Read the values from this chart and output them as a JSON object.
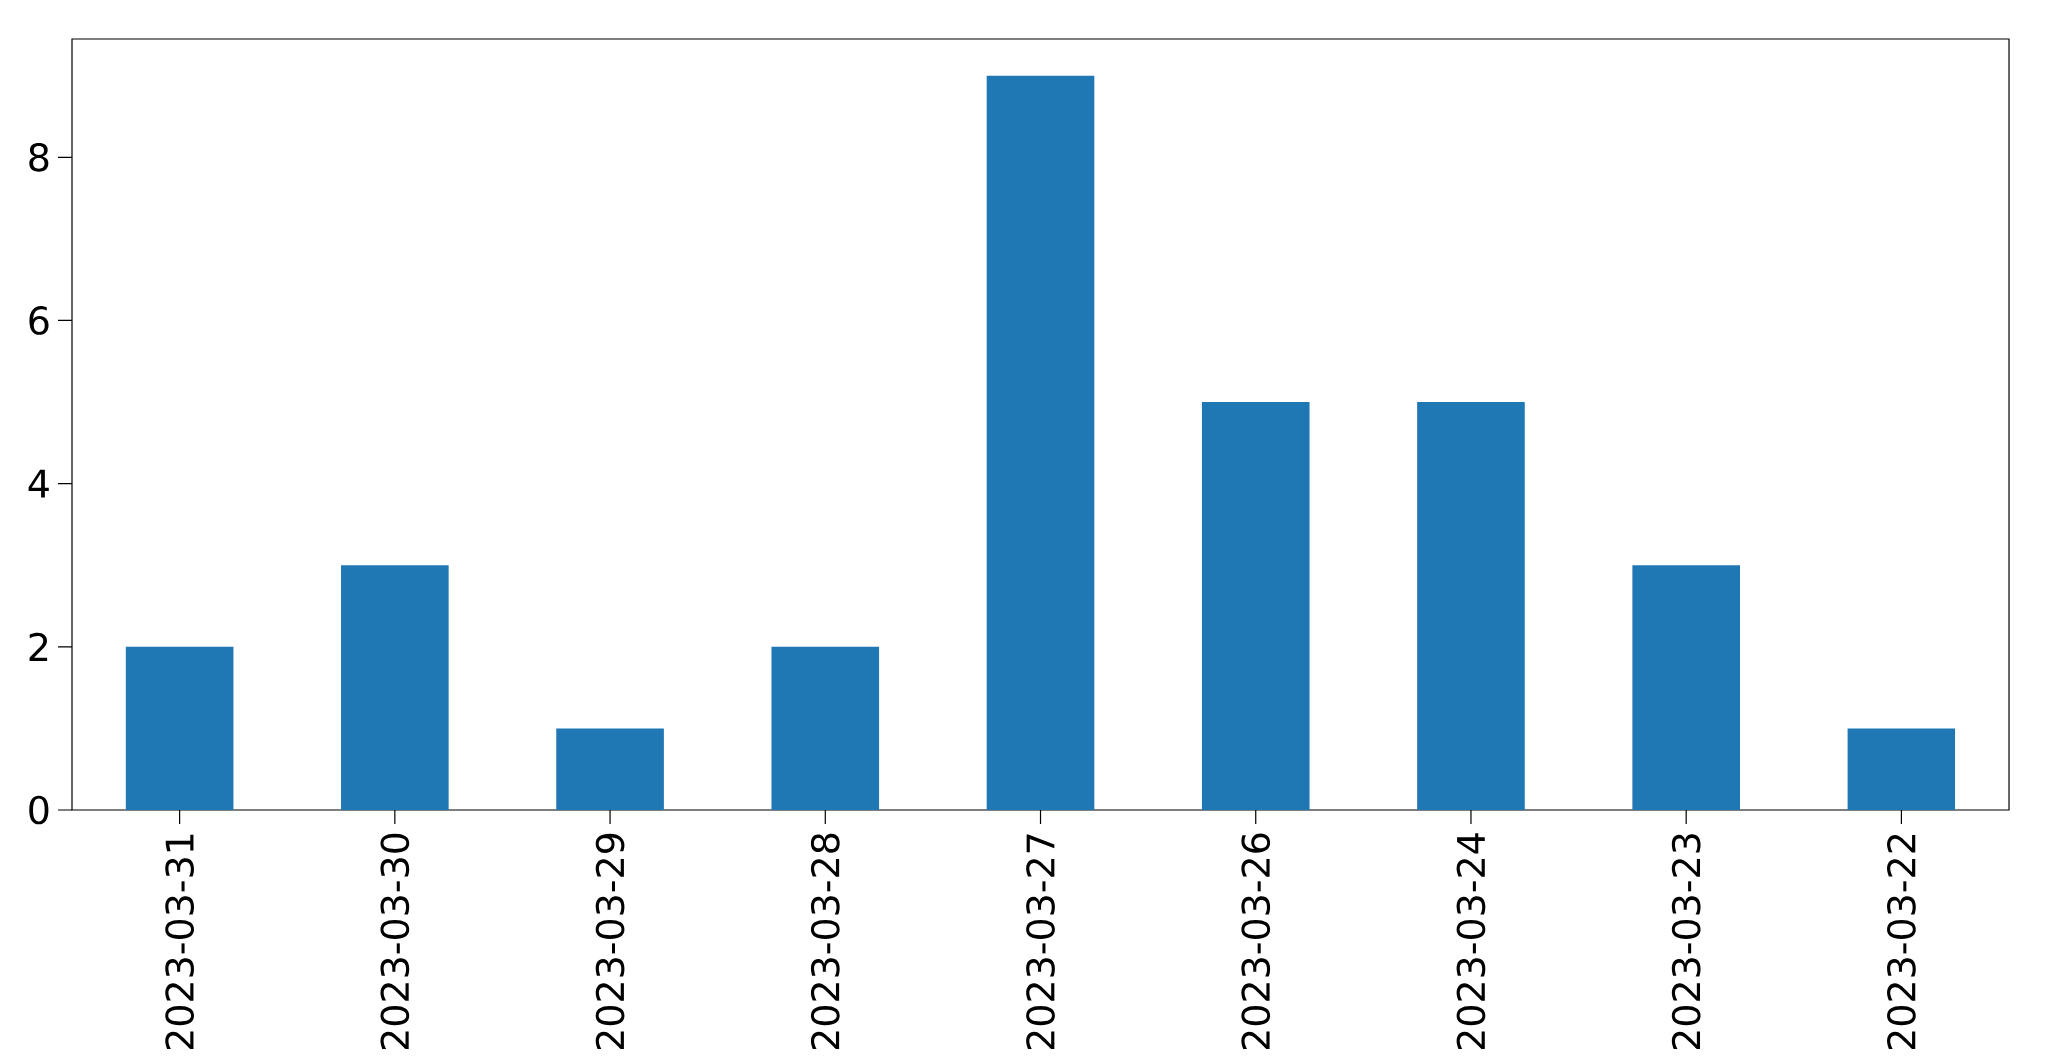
{
  "chart_data": {
    "type": "bar",
    "categories": [
      "2023-03-31",
      "2023-03-30",
      "2023-03-29",
      "2023-03-28",
      "2023-03-27",
      "2023-03-26",
      "2023-03-24",
      "2023-03-23",
      "2023-03-22"
    ],
    "values": [
      2,
      3,
      1,
      2,
      9,
      5,
      5,
      3,
      1
    ],
    "color": "#1f77b4",
    "ylim": [
      0,
      9.45
    ],
    "yticks": [
      0,
      2,
      4,
      6,
      8
    ]
  }
}
